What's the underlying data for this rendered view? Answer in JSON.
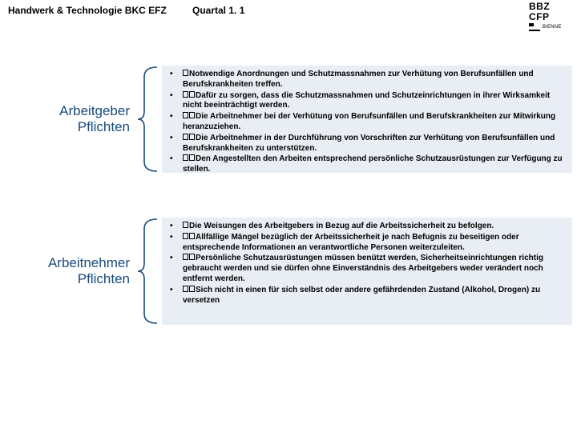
{
  "header": {
    "left": "Handwerk & Technologie BKC EFZ",
    "mid": "Quartal 1. 1",
    "logo_line1": "BBZ",
    "logo_line2": "CFP",
    "logo_city": "BIENNE"
  },
  "colors": {
    "label": "#174a7c",
    "box_bg": "#e9edf4",
    "brace": "#174a7c"
  },
  "sections": [
    {
      "label_lines": [
        "Arbeitgeber",
        "Pflichten"
      ],
      "glyph_counts": [
        1,
        2,
        2,
        2,
        2
      ],
      "items": [
        "Notwendige Anordnungen und Schutzmassnahmen zur Verhütung von Berufsunfällen und Berufskrankheiten treffen.",
        "Dafür zu sorgen, dass die Schutzmassnahmen und Schutzeinrichtungen in ihrer Wirksamkeit nicht beeinträchtigt werden.",
        "Die Arbeitnehmer bei der Verhütung von Berufsunfällen und Berufskrankheiten zur Mitwirkung heranzuziehen.",
        "Die Arbeitnehmer in der Durchführung von Vorschriften zur Verhütung von Berufsunfällen und Berufskrankheiten zu unterstützen.",
        "Den Angestellten den Arbeiten entsprechend persönliche Schutzausrüstungen zur Verfügung zu stellen."
      ]
    },
    {
      "label_lines": [
        "Arbeitnehmer",
        "Pflichten"
      ],
      "glyph_counts": [
        1,
        2,
        2,
        2
      ],
      "items": [
        "Die Weisungen des Arbeitgebers in Bezug auf die Arbeitssicherheit zu befolgen.",
        "Allfällige Mängel bezüglich der Arbeitssicherheit je nach Befugnis zu beseitigen oder entsprechende Informationen an verantwortliche Personen weiterzuleiten.",
        "Persönliche Schutzausrüstungen müssen benützt werden, Sicherheitseinrichtungen richtig gebraucht werden und sie dürfen ohne Einverständnis des Arbeitgebers weder verändert noch entfernt werden.",
        "Sich nicht in einen für sich selbst oder andere gefährdenden Zustand (Alkohol, Drogen) zu versetzen"
      ]
    }
  ]
}
